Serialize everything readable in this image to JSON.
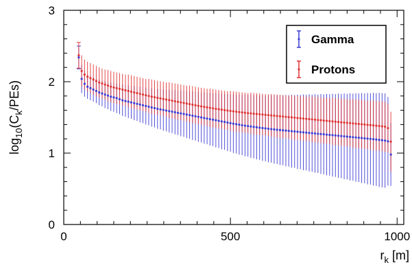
{
  "chart_data": {
    "type": "scatter",
    "title": "",
    "xlabel": "r_k [m]",
    "ylabel": "log10(C_k/PEs)",
    "xlim": [
      0,
      1020
    ],
    "ylim": [
      0,
      3
    ],
    "xticks": [
      0,
      500,
      1000
    ],
    "yticks": [
      0,
      1,
      2,
      3
    ],
    "grid": false,
    "legend_position": "top-right",
    "x_start": 45,
    "x_step": 8.75,
    "n_points": 108,
    "series": [
      {
        "name": "Gamma",
        "color": "#3b3bd4",
        "y": [
          2.34,
          2.04,
          1.97,
          1.93,
          1.91,
          1.89,
          1.87,
          1.85,
          1.835,
          1.82,
          1.805,
          1.79,
          1.78,
          1.77,
          1.755,
          1.74,
          1.73,
          1.72,
          1.71,
          1.7,
          1.69,
          1.68,
          1.67,
          1.66,
          1.65,
          1.64,
          1.63,
          1.62,
          1.612,
          1.604,
          1.596,
          1.588,
          1.58,
          1.572,
          1.564,
          1.556,
          1.548,
          1.54,
          1.532,
          1.524,
          1.516,
          1.508,
          1.5,
          1.492,
          1.484,
          1.476,
          1.468,
          1.46,
          1.452,
          1.444,
          1.436,
          1.428,
          1.42,
          1.412,
          1.405,
          1.398,
          1.391,
          1.385,
          1.379,
          1.373,
          1.367,
          1.362,
          1.356,
          1.351,
          1.346,
          1.341,
          1.336,
          1.332,
          1.327,
          1.323,
          1.319,
          1.315,
          1.311,
          1.307,
          1.303,
          1.299,
          1.295,
          1.291,
          1.287,
          1.283,
          1.279,
          1.275,
          1.271,
          1.267,
          1.263,
          1.259,
          1.255,
          1.251,
          1.247,
          1.243,
          1.239,
          1.235,
          1.231,
          1.227,
          1.223,
          1.219,
          1.215,
          1.211,
          1.207,
          1.203,
          1.199,
          1.195,
          1.19,
          1.185,
          1.18,
          1.175,
          1.165,
          0.98
        ],
        "err": [
          0.16,
          0.2,
          0.18,
          0.17,
          0.17,
          0.17,
          0.17,
          0.18,
          0.18,
          0.19,
          0.19,
          0.2,
          0.2,
          0.21,
          0.21,
          0.22,
          0.22,
          0.23,
          0.23,
          0.24,
          0.24,
          0.25,
          0.25,
          0.26,
          0.26,
          0.27,
          0.27,
          0.28,
          0.28,
          0.29,
          0.29,
          0.3,
          0.3,
          0.31,
          0.31,
          0.32,
          0.32,
          0.33,
          0.33,
          0.34,
          0.34,
          0.35,
          0.35,
          0.36,
          0.36,
          0.37,
          0.37,
          0.38,
          0.38,
          0.39,
          0.39,
          0.4,
          0.4,
          0.41,
          0.41,
          0.42,
          0.42,
          0.43,
          0.43,
          0.44,
          0.44,
          0.45,
          0.45,
          0.46,
          0.46,
          0.47,
          0.47,
          0.48,
          0.48,
          0.49,
          0.49,
          0.5,
          0.5,
          0.51,
          0.51,
          0.52,
          0.52,
          0.53,
          0.53,
          0.54,
          0.54,
          0.55,
          0.55,
          0.56,
          0.56,
          0.57,
          0.57,
          0.58,
          0.58,
          0.59,
          0.59,
          0.6,
          0.6,
          0.61,
          0.61,
          0.62,
          0.62,
          0.63,
          0.63,
          0.64,
          0.64,
          0.65,
          0.65,
          0.66,
          0.66,
          0.66,
          0.62,
          0.44
        ]
      },
      {
        "name": "Protons",
        "color": "#e03232",
        "y": [
          2.37,
          2.15,
          2.1,
          2.07,
          2.05,
          2.03,
          2.01,
          1.99,
          1.975,
          1.96,
          1.945,
          1.93,
          1.92,
          1.91,
          1.9,
          1.89,
          1.88,
          1.87,
          1.86,
          1.85,
          1.84,
          1.83,
          1.82,
          1.81,
          1.8,
          1.79,
          1.782,
          1.774,
          1.766,
          1.758,
          1.75,
          1.742,
          1.734,
          1.726,
          1.718,
          1.71,
          1.702,
          1.694,
          1.686,
          1.678,
          1.67,
          1.662,
          1.655,
          1.648,
          1.641,
          1.634,
          1.627,
          1.62,
          1.614,
          1.608,
          1.602,
          1.596,
          1.59,
          1.585,
          1.58,
          1.575,
          1.57,
          1.565,
          1.56,
          1.556,
          1.552,
          1.548,
          1.544,
          1.54,
          1.536,
          1.532,
          1.528,
          1.524,
          1.52,
          1.516,
          1.512,
          1.508,
          1.504,
          1.5,
          1.496,
          1.492,
          1.488,
          1.484,
          1.48,
          1.476,
          1.472,
          1.468,
          1.464,
          1.46,
          1.456,
          1.452,
          1.448,
          1.444,
          1.44,
          1.436,
          1.432,
          1.428,
          1.424,
          1.42,
          1.416,
          1.412,
          1.408,
          1.404,
          1.4,
          1.396,
          1.392,
          1.388,
          1.384,
          1.38,
          1.375,
          1.37,
          1.35,
          1.16
        ],
        "err": [
          0.18,
          0.22,
          0.21,
          0.21,
          0.21,
          0.21,
          0.21,
          0.21,
          0.21,
          0.21,
          0.22,
          0.22,
          0.22,
          0.22,
          0.22,
          0.22,
          0.22,
          0.23,
          0.23,
          0.23,
          0.23,
          0.23,
          0.23,
          0.23,
          0.24,
          0.24,
          0.24,
          0.24,
          0.24,
          0.24,
          0.24,
          0.25,
          0.25,
          0.25,
          0.25,
          0.25,
          0.25,
          0.25,
          0.26,
          0.26,
          0.26,
          0.26,
          0.26,
          0.26,
          0.26,
          0.27,
          0.27,
          0.27,
          0.27,
          0.27,
          0.27,
          0.27,
          0.28,
          0.28,
          0.28,
          0.28,
          0.28,
          0.28,
          0.28,
          0.29,
          0.29,
          0.29,
          0.29,
          0.29,
          0.29,
          0.29,
          0.3,
          0.3,
          0.3,
          0.3,
          0.3,
          0.3,
          0.3,
          0.31,
          0.31,
          0.31,
          0.31,
          0.31,
          0.31,
          0.31,
          0.32,
          0.32,
          0.32,
          0.32,
          0.32,
          0.32,
          0.32,
          0.33,
          0.33,
          0.33,
          0.33,
          0.33,
          0.33,
          0.33,
          0.34,
          0.34,
          0.34,
          0.34,
          0.34,
          0.34,
          0.34,
          0.35,
          0.35,
          0.35,
          0.35,
          0.35,
          0.34,
          0.42
        ]
      }
    ]
  }
}
